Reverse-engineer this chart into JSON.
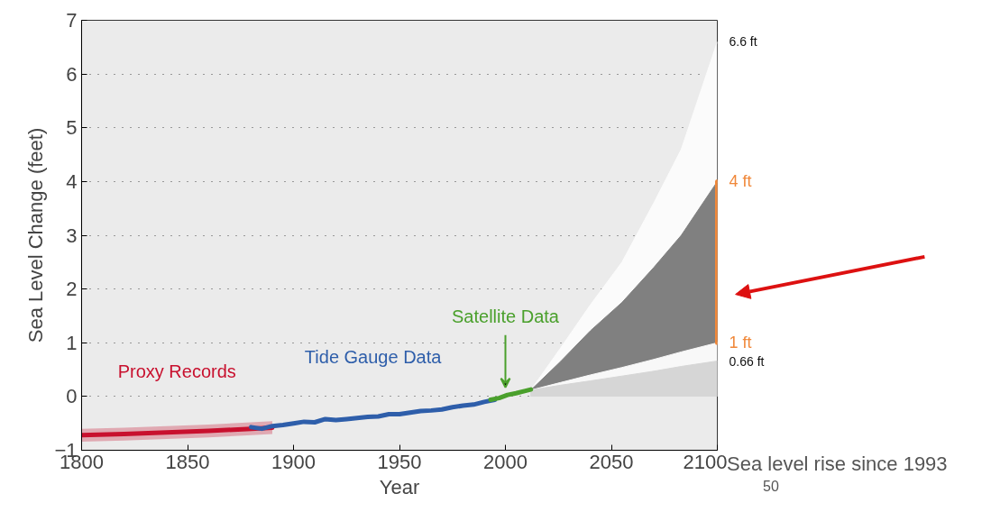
{
  "chart_data": {
    "type": "line",
    "xlabel": "Year",
    "ylabel": "Sea Level Change (feet)",
    "xlim": [
      1800,
      2100
    ],
    "ylim": [
      -1,
      7
    ],
    "xticks": [
      1800,
      1850,
      1900,
      1950,
      2000,
      2050,
      2100
    ],
    "yticks": [
      -1,
      0,
      1,
      2,
      3,
      4,
      5,
      6,
      7
    ],
    "grid": "y",
    "legend": false,
    "marker": "none",
    "line_style": "solid",
    "series": [
      {
        "type": "area",
        "color": "#fbfbfb",
        "x": [
          2012,
          2026,
          2040,
          2055,
          2070,
          2083,
          2100
        ],
        "values": [
          0.12,
          0.9,
          1.7,
          2.5,
          3.6,
          4.6,
          6.6
        ],
        "value_labels": [
          null,
          null,
          null,
          null,
          null,
          null,
          "6.6 ft"
        ]
      },
      {
        "type": "area",
        "color": "#808080",
        "x": [
          2012,
          2026,
          2040,
          2055,
          2070,
          2083,
          2100
        ],
        "values": [
          0.12,
          0.65,
          1.22,
          1.75,
          2.4,
          3.0,
          4.0
        ]
      },
      {
        "type": "area",
        "color": "#f8f8f8",
        "x": [
          2012,
          2026,
          2040,
          2055,
          2070,
          2083,
          2100
        ],
        "values": [
          0.12,
          0.26,
          0.4,
          0.54,
          0.69,
          0.83,
          1.0
        ]
      },
      {
        "type": "area",
        "color": "#d6d6d6",
        "x": [
          2012,
          2026,
          2040,
          2055,
          2070,
          2083,
          2100
        ],
        "values": [
          0.12,
          0.21,
          0.29,
          0.38,
          0.47,
          0.56,
          0.66
        ],
        "value_labels": [
          null,
          null,
          null,
          null,
          null,
          null,
          "0.66 ft"
        ]
      },
      {
        "name": "Proxy Records",
        "color": "#c8102e",
        "x": [
          1800,
          1820,
          1840,
          1860,
          1880,
          1890
        ],
        "values": [
          -0.72,
          -0.7,
          -0.67,
          -0.64,
          -0.6,
          -0.58
        ],
        "lower": [
          -0.84,
          -0.82,
          -0.79,
          -0.76,
          -0.72,
          -0.7
        ],
        "upper": [
          -0.6,
          -0.58,
          -0.55,
          -0.52,
          -0.48,
          -0.46
        ]
      },
      {
        "name": "Tide Gauge Data",
        "color": "#2e5eaa",
        "x": [
          1880,
          1885,
          1890,
          1895,
          1900,
          1905,
          1910,
          1915,
          1920,
          1925,
          1930,
          1935,
          1940,
          1945,
          1950,
          1955,
          1960,
          1965,
          1970,
          1975,
          1980,
          1985,
          1990,
          1995
        ],
        "values": [
          -0.57,
          -0.6,
          -0.55,
          -0.53,
          -0.5,
          -0.47,
          -0.48,
          -0.42,
          -0.44,
          -0.42,
          -0.4,
          -0.38,
          -0.37,
          -0.33,
          -0.33,
          -0.3,
          -0.27,
          -0.26,
          -0.24,
          -0.2,
          -0.17,
          -0.15,
          -0.1,
          -0.06
        ]
      },
      {
        "color": "#4aa02c",
        "x": [
          1993,
          1997,
          2001,
          2005,
          2009,
          2012
        ],
        "values": [
          -0.06,
          -0.03,
          0.03,
          0.06,
          0.1,
          0.13
        ]
      },
      {
        "color": "#f0883a",
        "x": [
          2100,
          2100
        ],
        "values": [
          1,
          4
        ],
        "value_labels": [
          "1 ft",
          "4 ft"
        ]
      }
    ],
    "annotations": [
      {
        "text": "Satellite Data",
        "x": 2000,
        "y": 0.05
      },
      "Sea level rise since 1993",
      "50"
    ]
  }
}
